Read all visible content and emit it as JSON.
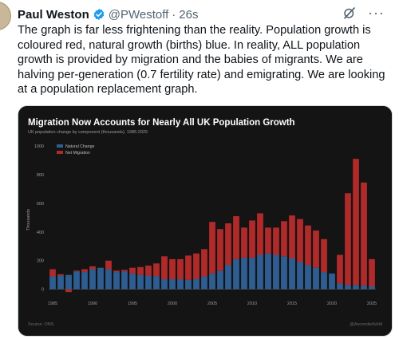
{
  "tweet": {
    "author_name": "Paul Weston",
    "handle": "@PWestoff",
    "separator": "·",
    "time": "26s",
    "text": "The graph is far less frightening than the reality. Population growth is coloured red, natural growth (births) blue. In reality, ALL population growth is provided by migration and the babies of migrants. We are halving per-generation (0.7 fertility rate) and emigrating. We are looking at a population replacement graph.",
    "more_label": "···"
  },
  "colors": {
    "natural": "#2e5d92",
    "migration": "#b02a2a",
    "background": "#141414",
    "verified": "#1d9bf0"
  },
  "icons": {
    "verified": "verified-badge-icon",
    "grok": "grok-icon",
    "more": "more-icon"
  },
  "chart_data": {
    "type": "bar",
    "stacked": true,
    "title": "Migration Now Accounts for Nearly All UK Population Growth",
    "subtitle": "UK population change by component (thousands), 1985-2025",
    "ylabel": "Thousands",
    "ylim": [
      0,
      1000
    ],
    "yticks": [
      "0",
      "200",
      "400",
      "600",
      "800",
      "1000"
    ],
    "xticks": [
      "1985",
      "1990",
      "1995",
      "2000",
      "2005",
      "2010",
      "2015",
      "2020",
      "2025"
    ],
    "categories": [
      "1985",
      "1986",
      "1987",
      "1988",
      "1989",
      "1990",
      "1991",
      "1992",
      "1993",
      "1994",
      "1995",
      "1996",
      "1997",
      "1998",
      "1999",
      "2000",
      "2001",
      "2002",
      "2003",
      "2004",
      "2005",
      "2006",
      "2007",
      "2008",
      "2009",
      "2010",
      "2011",
      "2012",
      "2013",
      "2014",
      "2015",
      "2016",
      "2017",
      "2018",
      "2019",
      "2020",
      "2021",
      "2022",
      "2023",
      "2024",
      "2025"
    ],
    "series": [
      {
        "name": "Natural Change",
        "values": [
          90,
          95,
          100,
          125,
          120,
          140,
          150,
          140,
          120,
          125,
          110,
          100,
          95,
          90,
          70,
          70,
          70,
          65,
          70,
          90,
          110,
          130,
          170,
          210,
          220,
          220,
          240,
          250,
          240,
          230,
          215,
          190,
          170,
          150,
          120,
          110,
          40,
          30,
          30,
          25,
          20
        ]
      },
      {
        "name": "Net Migration",
        "values": [
          50,
          10,
          -20,
          5,
          20,
          20,
          0,
          60,
          10,
          10,
          40,
          55,
          70,
          90,
          160,
          140,
          140,
          170,
          180,
          190,
          360,
          290,
          290,
          300,
          210,
          260,
          290,
          180,
          190,
          245,
          300,
          300,
          275,
          260,
          230,
          0,
          200,
          640,
          880,
          720,
          190
        ]
      }
    ],
    "legend": "top-left",
    "grid": false,
    "source": "Source: ONS",
    "credit": "@AscendedVeld"
  }
}
